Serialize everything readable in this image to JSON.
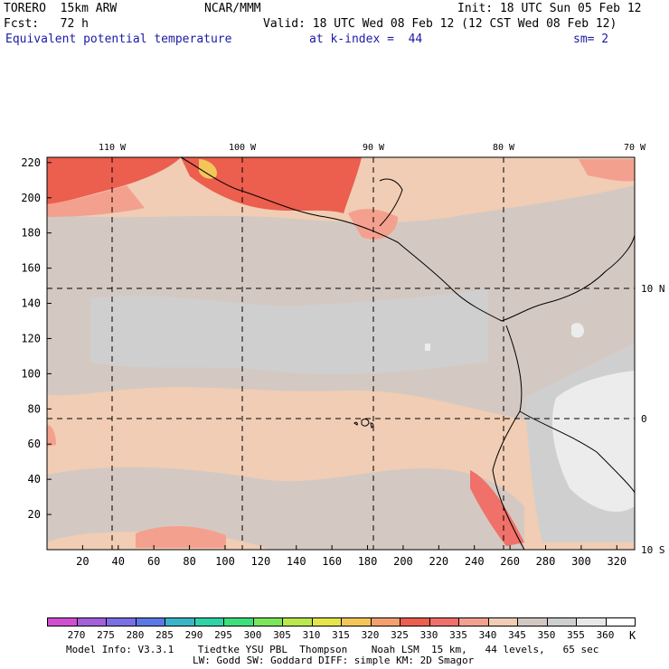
{
  "header": {
    "model": "TORERO  15km ARW",
    "center": "NCAR/MMM",
    "init": "Init: 18 UTC Sun 05 Feb 12",
    "fcst": "Fcst:   72 h",
    "valid": "Valid: 18 UTC Wed 08 Feb 12 (12 CST Wed 08 Feb 12)",
    "field": "Equivalent potential temperature",
    "level": "at k-index =  44",
    "smooth": "sm= 2"
  },
  "map": {
    "lon_labels": [
      "110 W",
      "100 W",
      "90 W",
      "80 W",
      "70 W"
    ],
    "lat_labels": [
      "10 N",
      "0",
      "10 S"
    ],
    "x_ticks": [
      "20",
      "40",
      "60",
      "80",
      "100",
      "120",
      "140",
      "160",
      "180",
      "200",
      "220",
      "240",
      "260",
      "280",
      "300",
      "320"
    ],
    "y_ticks": [
      "220",
      "200",
      "180",
      "160",
      "140",
      "120",
      "100",
      "80",
      "60",
      "40",
      "20"
    ]
  },
  "colorbar": {
    "labels": [
      "270",
      "275",
      "280",
      "285",
      "290",
      "295",
      "300",
      "305",
      "310",
      "315",
      "320",
      "325",
      "330",
      "335",
      "340",
      "345",
      "350",
      "355",
      "360"
    ],
    "unit": "K",
    "colors": [
      "#d04fd0",
      "#a45fd8",
      "#7a6fe4",
      "#5a78e6",
      "#3bb5c6",
      "#2fd3a8",
      "#3ce07a",
      "#7ae65a",
      "#b9e94c",
      "#e6e54a",
      "#f4c65a",
      "#f2a070",
      "#ec5e4e",
      "#f0706a",
      "#f4a08e",
      "#f0cdb4",
      "#d4c9c2",
      "#cfcfcf",
      "#e8e8e8",
      "#ffffff"
    ]
  },
  "footer": {
    "line1": "Model Info: V3.3.1    Tiedtke YSU PBL  Thompson    Noah LSM  15 km,   44 levels,   65 sec",
    "line2": "LW: Godd SW: Goddard DIFF: simple KM: 2D Smagor"
  }
}
